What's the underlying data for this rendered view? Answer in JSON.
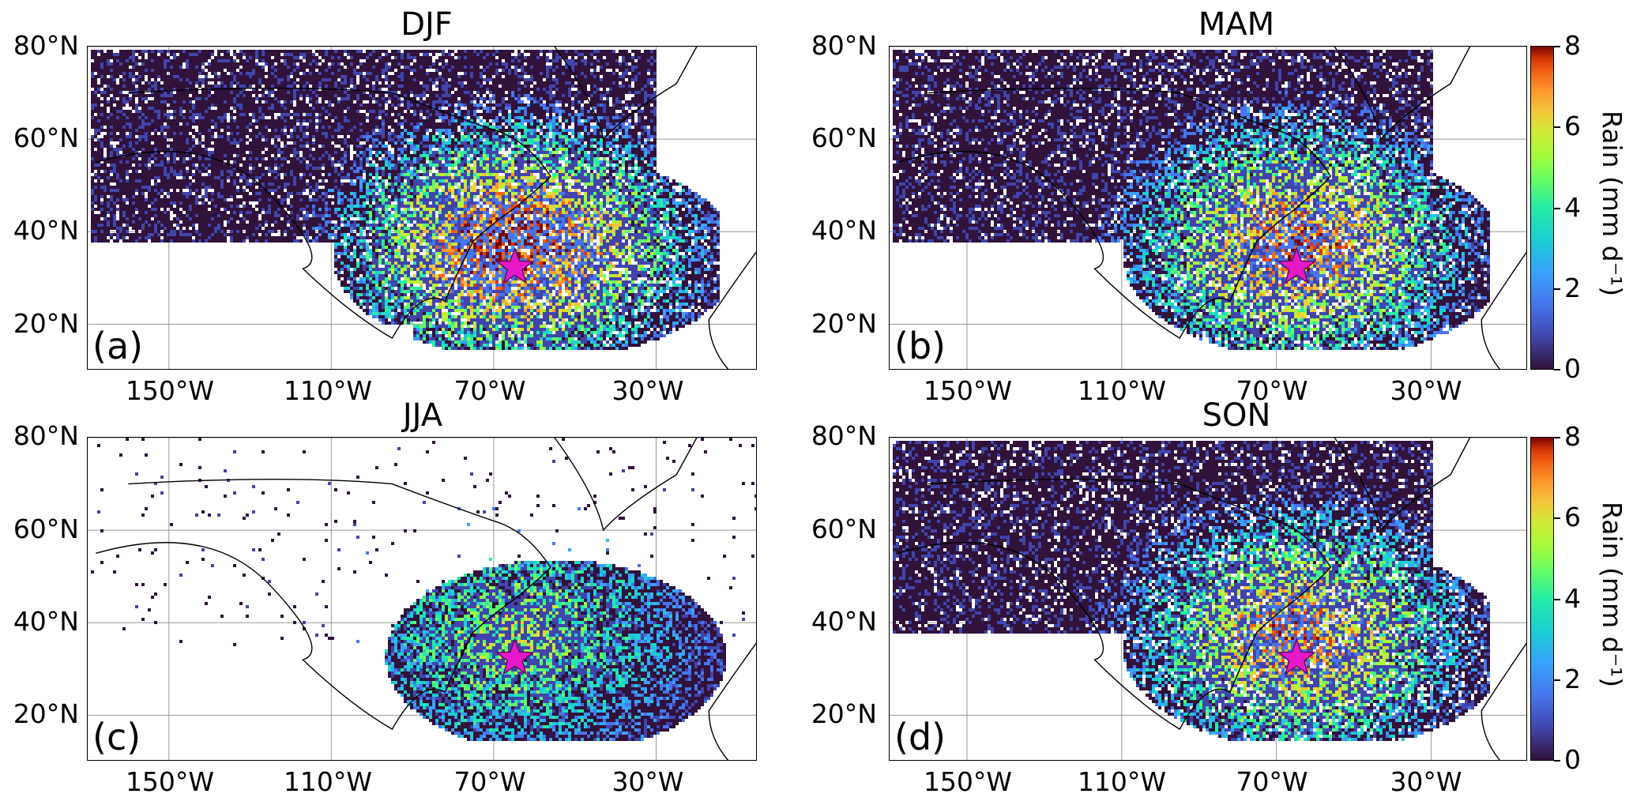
{
  "figure": {
    "panels": [
      {
        "title": "DJF",
        "letter": "(a)",
        "intensity": 1.0
      },
      {
        "title": "MAM",
        "letter": "(b)",
        "intensity": 0.9
      },
      {
        "title": "JJA",
        "letter": "(c)",
        "intensity": 0.55
      },
      {
        "title": "SON",
        "letter": "(d)",
        "intensity": 0.85
      }
    ],
    "lat_labels": [
      "80°N",
      "60°N",
      "40°N",
      "20°N"
    ],
    "lon_labels": [
      "150°W",
      "110°W",
      "70°W",
      "30°W"
    ],
    "colorbar": {
      "label": "Rain (mm d⁻¹)",
      "ticks": [
        "8",
        "6",
        "4",
        "2",
        "0"
      ],
      "min": 0,
      "max": 8,
      "colormap": "turbo"
    },
    "marker": {
      "symbol": "★",
      "color": "#e619c8",
      "lon": -64.8,
      "lat": 32.3
    },
    "extent": {
      "lon_min": -170,
      "lon_max": -5,
      "lat_min": 10,
      "lat_max": 80
    }
  }
}
